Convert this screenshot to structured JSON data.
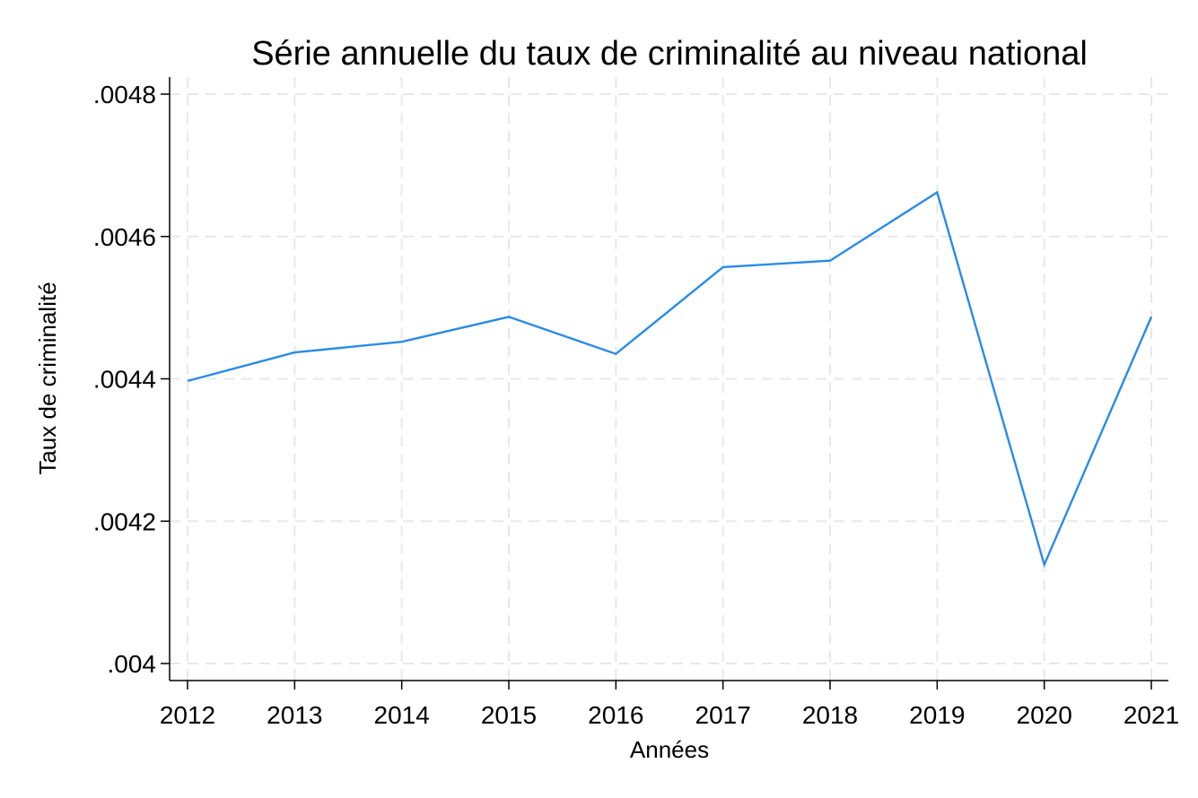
{
  "chart_data": {
    "type": "line",
    "title": "Série annuelle du taux de criminalité au niveau national",
    "xlabel": "Années",
    "ylabel": "Taux de criminalité",
    "x": [
      2012,
      2013,
      2014,
      2015,
      2016,
      2017,
      2018,
      2019,
      2020,
      2021
    ],
    "x_tick_labels": [
      "2012",
      "2013",
      "2014",
      "2015",
      "2016",
      "2017",
      "2018",
      "2019",
      "2020",
      "2021"
    ],
    "series": [
      {
        "values": [
          0.004397,
          0.004437,
          0.004452,
          0.004487,
          0.004435,
          0.004557,
          0.004566,
          0.004662,
          0.004139,
          0.004487
        ]
      }
    ],
    "ylim": [
      0.004,
      0.0048
    ],
    "y_ticks": [
      0.004,
      0.0042,
      0.0044,
      0.0046,
      0.0048
    ],
    "y_tick_labels": [
      ".004",
      ".0042",
      ".0044",
      ".0046",
      ".0048"
    ],
    "grid": true,
    "legend": "none"
  },
  "colors": {
    "series": "#2a8be6",
    "grid": "#e8e8e8",
    "axis": "#000000"
  }
}
